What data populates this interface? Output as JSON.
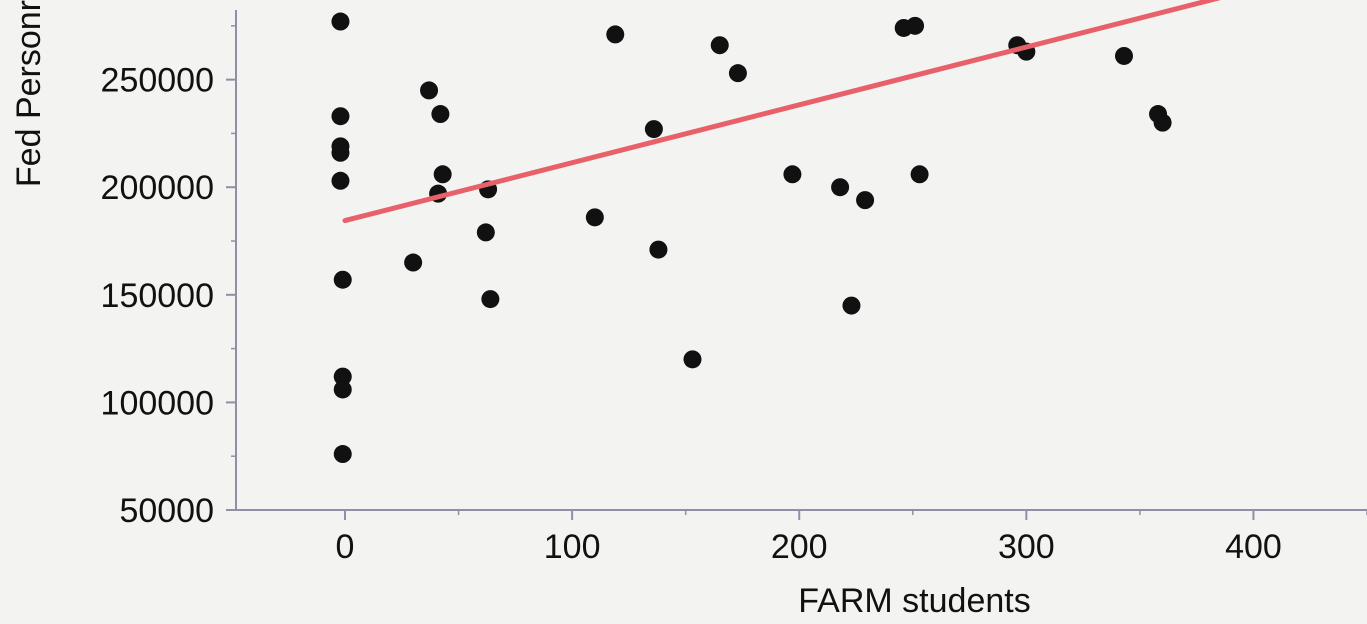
{
  "chart_data": {
    "type": "scatter",
    "title": "",
    "xlabel": "FARM students",
    "ylabel": "Fed Personr",
    "xlim": [
      -48,
      450
    ],
    "ylim": [
      50000,
      287000
    ],
    "x_ticks": [
      0,
      100,
      200,
      300,
      400
    ],
    "y_ticks": [
      50000,
      100000,
      150000,
      200000,
      250000
    ],
    "x_tick_labels": [
      "0",
      "100",
      "200",
      "300",
      "400"
    ],
    "y_tick_labels": [
      "50000",
      "100000",
      "150000",
      "200000",
      "250000"
    ],
    "grid": false,
    "colors": {
      "points": "#111111",
      "fit_line": "#e8606a",
      "axis": "#8f8fa6",
      "background": "#f3f3f1"
    },
    "points": [
      {
        "x": -2,
        "y": 277000
      },
      {
        "x": -2,
        "y": 233000
      },
      {
        "x": -2,
        "y": 219000
      },
      {
        "x": -2,
        "y": 216000
      },
      {
        "x": -2,
        "y": 203000
      },
      {
        "x": -1,
        "y": 157000
      },
      {
        "x": -1,
        "y": 112000
      },
      {
        "x": -1,
        "y": 106000
      },
      {
        "x": -1,
        "y": 76000
      },
      {
        "x": 30,
        "y": 165000
      },
      {
        "x": 37,
        "y": 245000
      },
      {
        "x": 41,
        "y": 197000
      },
      {
        "x": 42,
        "y": 234000
      },
      {
        "x": 43,
        "y": 206000
      },
      {
        "x": 62,
        "y": 179000
      },
      {
        "x": 63,
        "y": 199000
      },
      {
        "x": 64,
        "y": 148000
      },
      {
        "x": 110,
        "y": 186000
      },
      {
        "x": 119,
        "y": 271000
      },
      {
        "x": 136,
        "y": 227000
      },
      {
        "x": 138,
        "y": 171000
      },
      {
        "x": 153,
        "y": 120000
      },
      {
        "x": 165,
        "y": 266000
      },
      {
        "x": 173,
        "y": 253000
      },
      {
        "x": 197,
        "y": 206000
      },
      {
        "x": 218,
        "y": 200000
      },
      {
        "x": 223,
        "y": 145000
      },
      {
        "x": 229,
        "y": 194000
      },
      {
        "x": 246,
        "y": 274000
      },
      {
        "x": 251,
        "y": 275000
      },
      {
        "x": 253,
        "y": 206000
      },
      {
        "x": 296,
        "y": 266000
      },
      {
        "x": 300,
        "y": 263000
      },
      {
        "x": 343,
        "y": 261000
      },
      {
        "x": 358,
        "y": 234000
      },
      {
        "x": 360,
        "y": 230000
      }
    ],
    "fit_line": {
      "x1": 0,
      "y1": 184500,
      "x2": 385,
      "y2": 288000
    }
  }
}
